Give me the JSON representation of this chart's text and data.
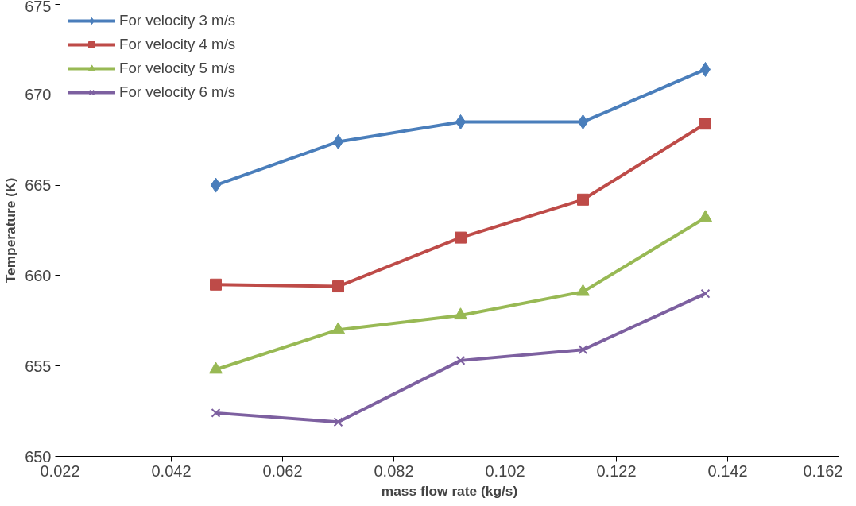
{
  "chart_data": {
    "type": "line",
    "xlabel": "mass flow rate (kg/s)",
    "ylabel": "Temperature (K)",
    "x": [
      0.05,
      0.072,
      0.094,
      0.116,
      0.138
    ],
    "series": [
      {
        "name": "For velocity 3 m/s",
        "color": "#4a7ebb",
        "marker": "diamond",
        "values": [
          665.0,
          667.4,
          668.5,
          668.5,
          671.4
        ]
      },
      {
        "name": "For velocity 4 m/s",
        "color": "#be4b48",
        "marker": "square",
        "values": [
          659.5,
          659.4,
          662.1,
          664.2,
          668.4
        ]
      },
      {
        "name": "For velocity 5 m/s",
        "color": "#98b954",
        "marker": "triangle",
        "values": [
          654.8,
          657.0,
          657.8,
          659.1,
          663.2
        ]
      },
      {
        "name": "For velocity 6 m/s",
        "color": "#7d60a0",
        "marker": "cross",
        "values": [
          652.4,
          651.9,
          655.3,
          655.9,
          659.0
        ]
      }
    ],
    "xlim": [
      0.022,
      0.162
    ],
    "xticks": [
      0.022,
      0.042,
      0.062,
      0.082,
      0.102,
      0.122,
      0.142,
      0.162
    ],
    "ylim": [
      650,
      675
    ],
    "yticks": [
      650,
      655,
      660,
      665,
      670,
      675
    ],
    "grid": false,
    "legend": "top left",
    "line_style": "solid"
  }
}
